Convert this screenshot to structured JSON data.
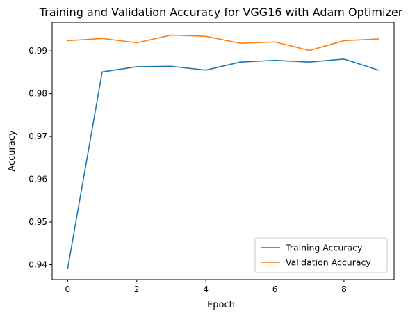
{
  "chart_data": {
    "type": "line",
    "title": "Training and Validation Accuracy for VGG16 with Adam Optimizer",
    "xlabel": "Epoch",
    "ylabel": "Accuracy",
    "x": [
      0,
      1,
      2,
      3,
      4,
      5,
      6,
      7,
      8,
      9
    ],
    "xlim": [
      -0.45,
      9.45
    ],
    "ylim": [
      0.9365,
      0.9967
    ],
    "xticks": [
      0,
      2,
      4,
      6,
      8
    ],
    "xtick_labels": [
      "0",
      "2",
      "4",
      "6",
      "8"
    ],
    "yticks": [
      0.94,
      0.95,
      0.96,
      0.97,
      0.98,
      0.99
    ],
    "ytick_labels": [
      "0.94",
      "0.95",
      "0.96",
      "0.97",
      "0.98",
      "0.99"
    ],
    "grid": false,
    "legend_position": "lower-right",
    "series": [
      {
        "name": "Training Accuracy",
        "color": "#1f77b4",
        "values": [
          0.9391,
          0.9851,
          0.9863,
          0.9864,
          0.9855,
          0.9874,
          0.9878,
          0.9874,
          0.9881,
          0.9855
        ]
      },
      {
        "name": "Validation Accuracy",
        "color": "#ff7f0e",
        "values": [
          0.9924,
          0.9929,
          0.9919,
          0.9937,
          0.9934,
          0.9918,
          0.9921,
          0.9901,
          0.9924,
          0.9928
        ]
      }
    ]
  }
}
